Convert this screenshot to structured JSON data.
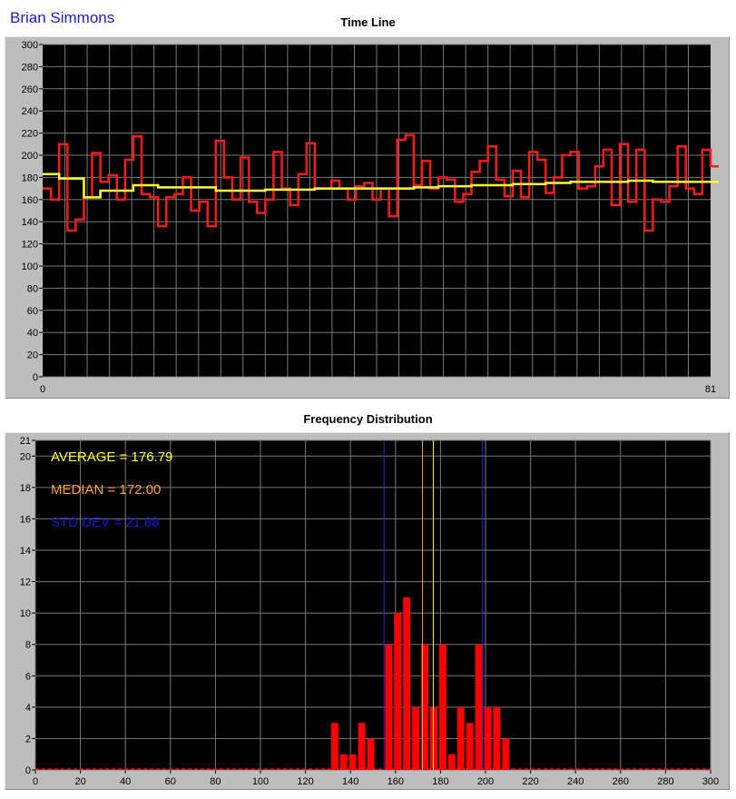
{
  "header": {
    "user_name": "Brian Simmons"
  },
  "colors": {
    "raw_line": "#ff1a1a",
    "average_line": "#ffff33",
    "bars": "#ff0000",
    "average_text": "#ffff33",
    "median_text": "#ffa03c",
    "std_text": "#1a1ad6",
    "plot_bg": "#000000",
    "grid": "#7a7a7a"
  },
  "chart_data": [
    {
      "type": "line",
      "title": "Time Line",
      "xlim": [
        0,
        81
      ],
      "ylim": [
        0,
        300
      ],
      "x_tick_labels": [
        "0",
        "81"
      ],
      "y_ticks": [
        0,
        20,
        40,
        60,
        80,
        100,
        120,
        140,
        160,
        180,
        200,
        220,
        240,
        260,
        280,
        300
      ],
      "grid": true,
      "step": true,
      "series": [
        {
          "role": "values",
          "values": [
            170,
            160,
            210,
            132,
            142,
            162,
            202,
            176,
            182,
            160,
            196,
            217,
            165,
            162,
            136,
            162,
            165,
            180,
            150,
            158,
            136,
            213,
            180,
            160,
            198,
            158,
            148,
            160,
            203,
            170,
            155,
            183,
            211,
            170,
            170,
            177,
            170,
            160,
            172,
            175,
            160,
            170,
            145,
            214,
            218,
            173,
            195,
            170,
            180,
            178,
            158,
            165,
            185,
            195,
            208,
            178,
            163,
            186,
            162,
            203,
            196,
            166,
            180,
            200,
            203,
            170,
            172,
            190,
            205,
            155,
            210,
            158,
            205,
            132,
            160,
            158,
            172,
            208,
            170,
            165,
            205,
            190
          ]
        },
        {
          "role": "average",
          "values": [
            183,
            183,
            179,
            179,
            179,
            162,
            162,
            168,
            168,
            168,
            168,
            173,
            173,
            173,
            171,
            171,
            171,
            171,
            171,
            171,
            171,
            168,
            168,
            168,
            168,
            168,
            168,
            169,
            169,
            169,
            169,
            169,
            169,
            170,
            170,
            170,
            170,
            170,
            170,
            170,
            170,
            170,
            170,
            170,
            170,
            171,
            171,
            171,
            172,
            172,
            172,
            172,
            173,
            173,
            173,
            173,
            173,
            174,
            174,
            174,
            174,
            175,
            175,
            175,
            176,
            176,
            176,
            176,
            176,
            176,
            176,
            177,
            177,
            177,
            176,
            176,
            176,
            176,
            176,
            176,
            176,
            176
          ]
        }
      ]
    },
    {
      "type": "bar",
      "title": "Frequency Distribution",
      "xlim": [
        0,
        300
      ],
      "ylim": [
        0,
        21
      ],
      "x_ticks": [
        0,
        20,
        40,
        60,
        80,
        100,
        120,
        140,
        160,
        180,
        200,
        220,
        240,
        260,
        280,
        300
      ],
      "y_ticks": [
        0,
        2,
        4,
        6,
        8,
        10,
        12,
        14,
        16,
        18,
        20,
        21
      ],
      "grid": true,
      "bin_width": 4,
      "bins": [
        {
          "x": 133,
          "value": 3
        },
        {
          "x": 137,
          "value": 1
        },
        {
          "x": 141,
          "value": 1
        },
        {
          "x": 145,
          "value": 3
        },
        {
          "x": 149,
          "value": 2
        },
        {
          "x": 157,
          "value": 8
        },
        {
          "x": 161,
          "value": 10
        },
        {
          "x": 165,
          "value": 11
        },
        {
          "x": 169,
          "value": 4
        },
        {
          "x": 173,
          "value": 8
        },
        {
          "x": 177,
          "value": 4
        },
        {
          "x": 181,
          "value": 8
        },
        {
          "x": 185,
          "value": 1
        },
        {
          "x": 189,
          "value": 4
        },
        {
          "x": 193,
          "value": 3
        },
        {
          "x": 197,
          "value": 8
        },
        {
          "x": 201,
          "value": 4
        },
        {
          "x": 205,
          "value": 4
        },
        {
          "x": 209,
          "value": 2
        }
      ],
      "reference_lines": [
        {
          "role": "std_low",
          "x": 154.91,
          "color": "#2b2bd9"
        },
        {
          "role": "median",
          "x": 172.0,
          "color": "#ffa03c"
        },
        {
          "role": "average",
          "x": 176.79,
          "color": "#ffff33"
        },
        {
          "role": "std_high",
          "x": 198.67,
          "color": "#2b2bd9"
        }
      ],
      "annotations": {
        "average": "AVERAGE = 176.79",
        "median": "MEDIAN = 172.00",
        "std_dev": "STD DEV = 21.88"
      }
    }
  ]
}
